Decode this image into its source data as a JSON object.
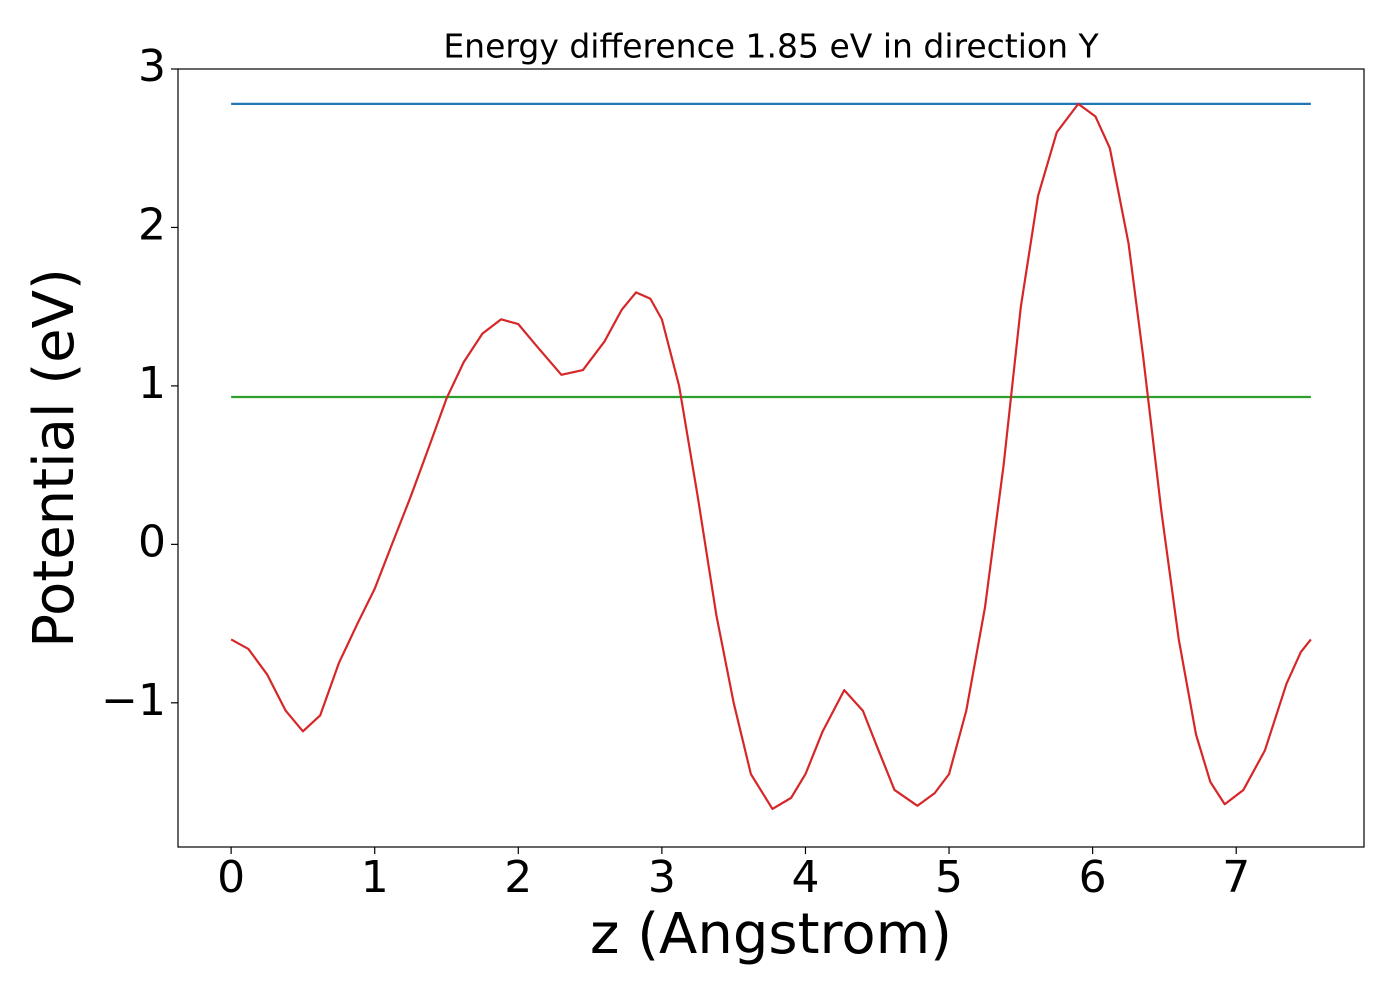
{
  "chart_data": {
    "type": "line",
    "title": "Energy difference 1.85 eV in direction Y",
    "xlabel": "z (Angstrom)",
    "ylabel": "Potential (eV)",
    "xlim": [
      -0.37,
      7.89
    ],
    "ylim": [
      -1.91,
      3.0
    ],
    "xticks": [
      0,
      1,
      2,
      3,
      4,
      5,
      6,
      7
    ],
    "yticks": [
      {
        "value": -1,
        "label": "−1"
      },
      0,
      1,
      2,
      3
    ],
    "series": [
      {
        "color": "#1f77b4",
        "x": [
          0,
          7.52
        ],
        "values": [
          2.78,
          2.78
        ]
      },
      {
        "color": "#2ca02c",
        "x": [
          0,
          7.52
        ],
        "values": [
          0.93,
          0.93
        ]
      },
      {
        "color": "#d62728",
        "x": [
          0,
          0.12,
          0.25,
          0.38,
          0.5,
          0.62,
          0.75,
          0.88,
          1.0,
          1.12,
          1.25,
          1.38,
          1.5,
          1.62,
          1.75,
          1.88,
          2.0,
          2.12,
          2.3,
          2.45,
          2.6,
          2.72,
          2.82,
          2.92,
          3.0,
          3.12,
          3.25,
          3.38,
          3.5,
          3.62,
          3.77,
          3.9,
          4.0,
          4.12,
          4.27,
          4.4,
          4.5,
          4.62,
          4.78,
          4.9,
          5.0,
          5.12,
          5.25,
          5.38,
          5.5,
          5.62,
          5.75,
          5.9,
          6.02,
          6.12,
          6.25,
          6.35,
          6.48,
          6.6,
          6.72,
          6.82,
          6.92,
          7.05,
          7.2,
          7.35,
          7.45,
          7.52
        ],
        "values": [
          -0.6,
          -0.66,
          -0.82,
          -1.05,
          -1.18,
          -1.08,
          -0.75,
          -0.5,
          -0.28,
          0.0,
          0.3,
          0.62,
          0.92,
          1.15,
          1.33,
          1.42,
          1.39,
          1.26,
          1.07,
          1.1,
          1.28,
          1.48,
          1.59,
          1.55,
          1.42,
          1.0,
          0.3,
          -0.45,
          -1.0,
          -1.45,
          -1.67,
          -1.6,
          -1.45,
          -1.18,
          -0.92,
          -1.05,
          -1.28,
          -1.55,
          -1.65,
          -1.57,
          -1.45,
          -1.05,
          -0.4,
          0.5,
          1.5,
          2.2,
          2.6,
          2.78,
          2.7,
          2.5,
          1.9,
          1.2,
          0.2,
          -0.6,
          -1.2,
          -1.5,
          -1.64,
          -1.55,
          -1.3,
          -0.88,
          -0.68,
          -0.6
        ]
      }
    ]
  }
}
